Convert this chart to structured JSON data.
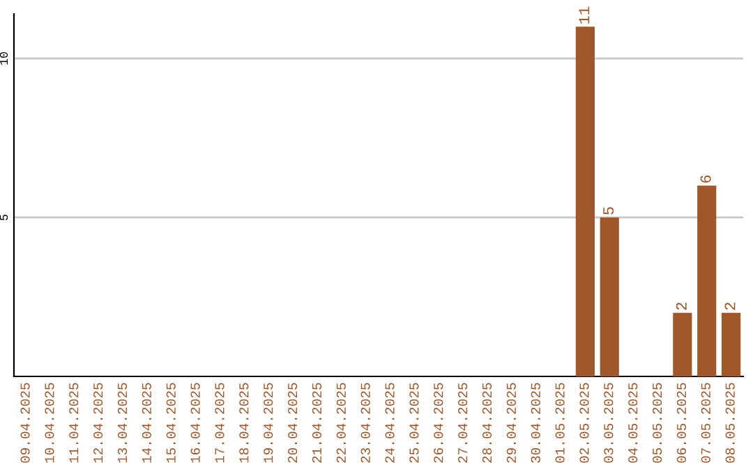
{
  "chart_data": {
    "type": "bar",
    "categories": [
      "09.04.2025",
      "10.04.2025",
      "11.04.2025",
      "12.04.2025",
      "13.04.2025",
      "14.04.2025",
      "15.04.2025",
      "16.04.2025",
      "17.04.2025",
      "18.04.2025",
      "19.04.2025",
      "20.04.2025",
      "21.04.2025",
      "22.04.2025",
      "23.04.2025",
      "24.04.2025",
      "25.04.2025",
      "26.04.2025",
      "27.04.2025",
      "28.04.2025",
      "29.04.2025",
      "30.04.2025",
      "01.05.2025",
      "02.05.2025",
      "03.05.2025",
      "04.05.2025",
      "05.05.2025",
      "06.05.2025",
      "07.05.2025",
      "08.05.2025"
    ],
    "values": [
      0,
      0,
      0,
      0,
      0,
      0,
      0,
      0,
      0,
      0,
      0,
      0,
      0,
      0,
      0,
      0,
      0,
      0,
      0,
      0,
      0,
      0,
      0,
      11,
      5,
      0,
      0,
      2,
      6,
      2
    ],
    "value_labels": [
      null,
      null,
      null,
      null,
      null,
      null,
      null,
      null,
      null,
      null,
      null,
      null,
      null,
      null,
      null,
      null,
      null,
      null,
      null,
      null,
      null,
      null,
      null,
      "11",
      "5",
      null,
      null,
      "2",
      "6",
      "2"
    ],
    "color": "#a0582a",
    "ylim": [
      0,
      11.4
    ],
    "yticks": [
      5,
      10
    ],
    "grid": "y"
  }
}
